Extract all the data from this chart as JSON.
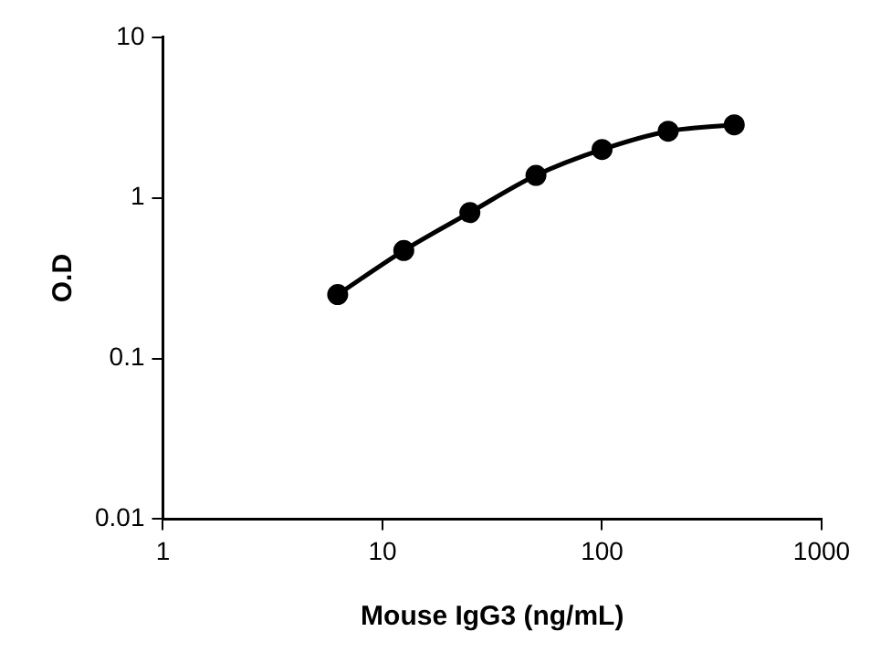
{
  "chart_data": {
    "type": "line",
    "xlabel": "Mouse IgG3 (ng/mL)",
    "ylabel": "O.D",
    "x": [
      6.25,
      12.5,
      25,
      50,
      100,
      200,
      400
    ],
    "series": [
      {
        "color": "#000000",
        "values": [
          0.25,
          0.47,
          0.81,
          1.38,
          2.0,
          2.6,
          2.85
        ]
      }
    ],
    "xlim": [
      1,
      1000
    ],
    "xticks": [
      1,
      10,
      100,
      1000
    ],
    "ylim": [
      0.01,
      10
    ],
    "yticks": [
      0.01,
      0.1,
      1,
      10
    ],
    "log": "xy",
    "grid": false,
    "legend": false,
    "marker": "circle",
    "line_style": "solid"
  }
}
